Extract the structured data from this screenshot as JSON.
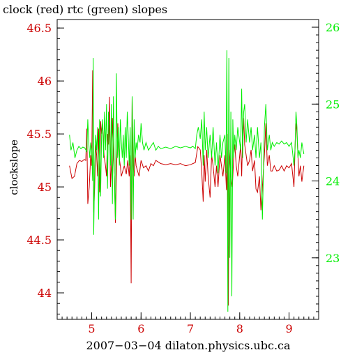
{
  "chart_data": {
    "type": "line",
    "title": "clock (red) rtc (green) slopes",
    "xlabel": "2007−03−04  dilaton.physics.ubc.ca",
    "ylabel": "clockslope",
    "xlim": [
      4.3,
      9.6
    ],
    "ylim_left": [
      43.75,
      46.58
    ],
    "ylim_right": [
      22.2,
      26.1
    ],
    "x_ticks": [
      5,
      6,
      7,
      8,
      9
    ],
    "y_left_ticks": [
      44,
      44.5,
      45,
      45.5,
      46,
      46.5
    ],
    "y_right_ticks": [
      23,
      24,
      25,
      26
    ],
    "grid": false,
    "series": [
      {
        "name": "clock",
        "axis": "left",
        "color": "#cc0000",
        "points": [
          [
            4.55,
            45.2
          ],
          [
            4.6,
            45.08
          ],
          [
            4.65,
            45.1
          ],
          [
            4.7,
            45.22
          ],
          [
            4.75,
            45.25
          ],
          [
            4.8,
            45.24
          ],
          [
            4.85,
            45.26
          ],
          [
            4.88,
            45.25
          ],
          [
            4.9,
            45.55
          ],
          [
            4.92,
            44.84
          ],
          [
            4.95,
            45.0
          ],
          [
            4.98,
            45.3
          ],
          [
            5.0,
            45.2
          ],
          [
            5.02,
            46.1
          ],
          [
            5.04,
            44.76
          ],
          [
            5.06,
            45.0
          ],
          [
            5.08,
            45.4
          ],
          [
            5.1,
            45.3
          ],
          [
            5.12,
            45.1
          ],
          [
            5.14,
            45.55
          ],
          [
            5.16,
            44.95
          ],
          [
            5.18,
            45.62
          ],
          [
            5.2,
            45.5
          ],
          [
            5.22,
            45.6
          ],
          [
            5.25,
            45.3
          ],
          [
            5.28,
            45.2
          ],
          [
            5.3,
            45.1
          ],
          [
            5.32,
            45.5
          ],
          [
            5.34,
            45.4
          ],
          [
            5.36,
            45.85
          ],
          [
            5.38,
            45.0
          ],
          [
            5.4,
            45.2
          ],
          [
            5.42,
            45.65
          ],
          [
            5.44,
            45.3
          ],
          [
            5.46,
            45.1
          ],
          [
            5.48,
            44.66
          ],
          [
            5.5,
            45.1
          ],
          [
            5.53,
            45.6
          ],
          [
            5.55,
            45.3
          ],
          [
            5.58,
            45.2
          ],
          [
            5.6,
            45.1
          ],
          [
            5.63,
            45.15
          ],
          [
            5.66,
            45.2
          ],
          [
            5.7,
            45.12
          ],
          [
            5.73,
            45.25
          ],
          [
            5.76,
            45.1
          ],
          [
            5.78,
            45.3
          ],
          [
            5.8,
            44.09
          ],
          [
            5.82,
            45.85
          ],
          [
            5.84,
            45.2
          ],
          [
            5.86,
            45.1
          ],
          [
            5.88,
            45.3
          ],
          [
            5.9,
            45.2
          ],
          [
            5.93,
            45.15
          ],
          [
            5.96,
            45.1
          ],
          [
            6.0,
            45.25
          ],
          [
            6.05,
            45.18
          ],
          [
            6.1,
            45.2
          ],
          [
            6.15,
            45.15
          ],
          [
            6.2,
            45.22
          ],
          [
            6.25,
            45.2
          ],
          [
            6.3,
            45.25
          ],
          [
            6.4,
            45.22
          ],
          [
            6.5,
            45.21
          ],
          [
            6.6,
            45.22
          ],
          [
            6.7,
            45.21
          ],
          [
            6.8,
            45.22
          ],
          [
            6.9,
            45.2
          ],
          [
            7.0,
            45.21
          ],
          [
            7.1,
            45.23
          ],
          [
            7.15,
            45.38
          ],
          [
            7.2,
            45.35
          ],
          [
            7.23,
            45.15
          ],
          [
            7.26,
            44.86
          ],
          [
            7.28,
            45.3
          ],
          [
            7.3,
            45.05
          ],
          [
            7.33,
            45.35
          ],
          [
            7.36,
            45.1
          ],
          [
            7.4,
            44.9
          ],
          [
            7.43,
            45.3
          ],
          [
            7.46,
            45.2
          ],
          [
            7.5,
            45.0
          ],
          [
            7.53,
            45.2
          ],
          [
            7.56,
            45.0
          ],
          [
            7.6,
            45.3
          ],
          [
            7.63,
            45.2
          ],
          [
            7.66,
            45.1
          ],
          [
            7.7,
            45.3
          ],
          [
            7.73,
            44.97
          ],
          [
            7.75,
            45.5
          ],
          [
            7.77,
            43.88
          ],
          [
            7.79,
            45.35
          ],
          [
            7.82,
            45.1
          ],
          [
            7.85,
            45.0
          ],
          [
            7.88,
            45.3
          ],
          [
            7.9,
            45.4
          ],
          [
            7.93,
            45.2
          ],
          [
            7.96,
            45.1
          ],
          [
            8.0,
            45.3
          ],
          [
            8.02,
            45.4
          ],
          [
            8.04,
            45.1
          ],
          [
            8.06,
            45.5
          ],
          [
            8.08,
            45.65
          ],
          [
            8.1,
            45.4
          ],
          [
            8.13,
            45.3
          ],
          [
            8.16,
            45.2
          ],
          [
            8.2,
            45.25
          ],
          [
            8.23,
            45.35
          ],
          [
            8.26,
            45.15
          ],
          [
            8.3,
            45.25
          ],
          [
            8.33,
            44.98
          ],
          [
            8.36,
            44.95
          ],
          [
            8.4,
            45.1
          ],
          [
            8.43,
            44.78
          ],
          [
            8.46,
            45.0
          ],
          [
            8.5,
            45.3
          ],
          [
            8.53,
            45.6
          ],
          [
            8.56,
            45.2
          ],
          [
            8.6,
            45.3
          ],
          [
            8.63,
            45.15
          ],
          [
            8.66,
            45.15
          ],
          [
            8.7,
            45.2
          ],
          [
            8.75,
            45.15
          ],
          [
            8.8,
            45.16
          ],
          [
            8.85,
            45.2
          ],
          [
            8.9,
            45.15
          ],
          [
            8.95,
            45.2
          ],
          [
            9.0,
            45.18
          ],
          [
            9.05,
            45.22
          ],
          [
            9.1,
            45.0
          ],
          [
            9.13,
            45.5
          ],
          [
            9.15,
            45.6
          ],
          [
            9.18,
            45.3
          ],
          [
            9.2,
            45.1
          ],
          [
            9.23,
            45.2
          ],
          [
            9.26,
            45.05
          ],
          [
            9.3,
            45.2
          ]
        ]
      },
      {
        "name": "rtc",
        "axis": "right",
        "color": "#00ee00",
        "points": [
          [
            4.55,
            24.6
          ],
          [
            4.58,
            24.4
          ],
          [
            4.62,
            24.5
          ],
          [
            4.66,
            24.3
          ],
          [
            4.7,
            24.4
          ],
          [
            4.74,
            24.45
          ],
          [
            4.78,
            24.42
          ],
          [
            4.82,
            24.44
          ],
          [
            4.86,
            24.43
          ],
          [
            4.9,
            24.38
          ],
          [
            4.92,
            24.8
          ],
          [
            4.94,
            24.5
          ],
          [
            4.96,
            24.3
          ],
          [
            4.98,
            24.5
          ],
          [
            5.0,
            24.4
          ],
          [
            5.02,
            24.0
          ],
          [
            5.03,
            25.6
          ],
          [
            5.04,
            23.3
          ],
          [
            5.06,
            24.2
          ],
          [
            5.08,
            24.6
          ],
          [
            5.1,
            24.4
          ],
          [
            5.12,
            24.7
          ],
          [
            5.14,
            23.5
          ],
          [
            5.16,
            24.8
          ],
          [
            5.18,
            23.8
          ],
          [
            5.2,
            24.6
          ],
          [
            5.22,
            24.8
          ],
          [
            5.24,
            24.3
          ],
          [
            5.26,
            24.9
          ],
          [
            5.28,
            24.4
          ],
          [
            5.3,
            25.0
          ],
          [
            5.32,
            23.9
          ],
          [
            5.34,
            24.9
          ],
          [
            5.36,
            24.6
          ],
          [
            5.38,
            24.2
          ],
          [
            5.4,
            25.0
          ],
          [
            5.42,
            23.7
          ],
          [
            5.44,
            25.1
          ],
          [
            5.46,
            24.0
          ],
          [
            5.48,
            23.5
          ],
          [
            5.5,
            25.4
          ],
          [
            5.52,
            24.3
          ],
          [
            5.54,
            24.7
          ],
          [
            5.56,
            24.2
          ],
          [
            5.58,
            24.8
          ],
          [
            5.6,
            24.5
          ],
          [
            5.62,
            24.3
          ],
          [
            5.64,
            24.6
          ],
          [
            5.66,
            24.2
          ],
          [
            5.68,
            24.7
          ],
          [
            5.7,
            24.3
          ],
          [
            5.72,
            24.9
          ],
          [
            5.74,
            24.6
          ],
          [
            5.76,
            24.2
          ],
          [
            5.78,
            24.7
          ],
          [
            5.8,
            23.5
          ],
          [
            5.82,
            25.1
          ],
          [
            5.84,
            23.5
          ],
          [
            5.86,
            24.8
          ],
          [
            5.88,
            24.3
          ],
          [
            5.9,
            24.5
          ],
          [
            5.92,
            24.4
          ],
          [
            5.95,
            24.6
          ],
          [
            5.98,
            24.5
          ],
          [
            6.0,
            24.75
          ],
          [
            6.03,
            24.5
          ],
          [
            6.06,
            24.4
          ],
          [
            6.1,
            24.5
          ],
          [
            6.15,
            24.4
          ],
          [
            6.2,
            24.45
          ],
          [
            6.25,
            24.5
          ],
          [
            6.3,
            24.4
          ],
          [
            6.35,
            24.45
          ],
          [
            6.4,
            24.42
          ],
          [
            6.5,
            24.44
          ],
          [
            6.6,
            24.42
          ],
          [
            6.7,
            24.45
          ],
          [
            6.8,
            24.43
          ],
          [
            6.9,
            24.45
          ],
          [
            7.0,
            24.43
          ],
          [
            7.05,
            24.45
          ],
          [
            7.1,
            24.42
          ],
          [
            7.13,
            24.6
          ],
          [
            7.16,
            24.7
          ],
          [
            7.2,
            24.55
          ],
          [
            7.23,
            24.8
          ],
          [
            7.26,
            24.2
          ],
          [
            7.28,
            24.9
          ],
          [
            7.3,
            24.4
          ],
          [
            7.33,
            24.7
          ],
          [
            7.36,
            24.3
          ],
          [
            7.4,
            24.6
          ],
          [
            7.43,
            24.3
          ],
          [
            7.46,
            24.7
          ],
          [
            7.5,
            24.2
          ],
          [
            7.53,
            24.5
          ],
          [
            7.56,
            24.1
          ],
          [
            7.6,
            24.6
          ],
          [
            7.63,
            24.3
          ],
          [
            7.66,
            24.5
          ],
          [
            7.7,
            24.6
          ],
          [
            7.72,
            24.1
          ],
          [
            7.74,
            25.7
          ],
          [
            7.76,
            22.3
          ],
          [
            7.78,
            25.6
          ],
          [
            7.8,
            23.0
          ],
          [
            7.82,
            24.9
          ],
          [
            7.84,
            22.5
          ],
          [
            7.86,
            24.8
          ],
          [
            7.88,
            24.3
          ],
          [
            7.9,
            24.6
          ],
          [
            7.93,
            24.4
          ],
          [
            7.96,
            24.7
          ],
          [
            8.0,
            24.5
          ],
          [
            8.02,
            24.4
          ],
          [
            8.04,
            25.2
          ],
          [
            8.06,
            24.3
          ],
          [
            8.08,
            24.9
          ],
          [
            8.1,
            25.0
          ],
          [
            8.13,
            24.5
          ],
          [
            8.16,
            24.8
          ],
          [
            8.2,
            24.5
          ],
          [
            8.23,
            24.7
          ],
          [
            8.26,
            24.4
          ],
          [
            8.3,
            24.6
          ],
          [
            8.33,
            24.3
          ],
          [
            8.36,
            24.7
          ],
          [
            8.4,
            24.3
          ],
          [
            8.43,
            24.5
          ],
          [
            8.46,
            23.5
          ],
          [
            8.5,
            24.7
          ],
          [
            8.53,
            25.0
          ],
          [
            8.56,
            24.4
          ],
          [
            8.6,
            24.6
          ],
          [
            8.63,
            24.4
          ],
          [
            8.66,
            24.5
          ],
          [
            8.7,
            24.45
          ],
          [
            8.75,
            24.5
          ],
          [
            8.8,
            24.48
          ],
          [
            8.85,
            24.52
          ],
          [
            8.9,
            24.48
          ],
          [
            8.95,
            24.5
          ],
          [
            9.0,
            24.45
          ],
          [
            9.05,
            24.5
          ],
          [
            9.1,
            24.2
          ],
          [
            9.12,
            24.4
          ],
          [
            9.14,
            24.9
          ],
          [
            9.16,
            24.7
          ],
          [
            9.18,
            24.3
          ],
          [
            9.2,
            24.4
          ],
          [
            9.23,
            24.3
          ],
          [
            9.26,
            24.5
          ],
          [
            9.3,
            24.35
          ]
        ]
      }
    ]
  },
  "colors": {
    "clock": "#cc0000",
    "rtc": "#00ee00",
    "axis": "#000000"
  }
}
